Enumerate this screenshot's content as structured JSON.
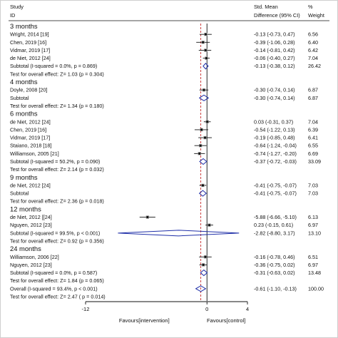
{
  "header": {
    "study": "Study",
    "id": "ID",
    "smd_line1": "Std. Mean",
    "smd_line2": "Difference (95% CI)",
    "pct": "%",
    "weight": "Weight"
  },
  "chart_data": {
    "type": "forest",
    "xlim": [
      -12,
      4
    ],
    "xticks": [
      -12,
      0,
      4
    ],
    "xlabel_left": "Favours[intervention]",
    "xlabel_right": "Favours[control]",
    "overall_line": -0.61,
    "rows": [
      {
        "kind": "group",
        "label": "3 months"
      },
      {
        "kind": "study",
        "label": "Wright, 2014 [19]",
        "est": -0.13,
        "lo": -0.73,
        "hi": 0.47,
        "ci": "-0.13 (-0.73, 0.47)",
        "w": "6.56"
      },
      {
        "kind": "study",
        "label": "Chen, 2019 [16]",
        "est": -0.39,
        "lo": -1.06,
        "hi": 0.28,
        "ci": "-0.39 (-1.06, 0.28)",
        "w": "6.40"
      },
      {
        "kind": "study",
        "label": "Vidmar, 2019 [17]",
        "est": -0.14,
        "lo": -0.81,
        "hi": 0.42,
        "ci": "-0.14 (-0.81, 0.42)",
        "w": "6.42"
      },
      {
        "kind": "study",
        "label": "de Niet, 2012 [24]",
        "est": -0.06,
        "lo": -0.4,
        "hi": 0.27,
        "ci": "-0.06 (-0.40, 0.27)",
        "w": "7.04"
      },
      {
        "kind": "subtotal",
        "label": "Subtotal  (I-squared = 0.0%, p = 0.869)",
        "est": -0.13,
        "lo": -0.38,
        "hi": 0.12,
        "ci": "-0.13 (-0.38, 0.12)",
        "w": "26.42"
      },
      {
        "kind": "test",
        "label": "Test for overall effect: Z= 1.03 (p = 0.304)"
      },
      {
        "kind": "group",
        "label": "4 months"
      },
      {
        "kind": "study",
        "label": "Doyle, 2008 [20]",
        "est": -0.3,
        "lo": -0.74,
        "hi": 0.14,
        "ci": "-0.30 (-0.74, 0.14)",
        "w": "6.87"
      },
      {
        "kind": "subtotal",
        "label": "Subtotal",
        "est": -0.3,
        "lo": -0.74,
        "hi": 0.14,
        "ci": "-0.30 (-0.74, 0.14)",
        "w": "6.87"
      },
      {
        "kind": "test",
        "label": "Test for overall effect: Z= 1.34 (p = 0.180)"
      },
      {
        "kind": "group",
        "label": "6 months"
      },
      {
        "kind": "study",
        "label": "de Niet, 2012 [24]",
        "est": 0.03,
        "lo": -0.31,
        "hi": 0.37,
        "ci": "0.03 (-0.31, 0.37)",
        "w": "7.04"
      },
      {
        "kind": "study",
        "label": "Chen, 2019 [16]",
        "est": -0.54,
        "lo": -1.22,
        "hi": 0.13,
        "ci": "-0.54 (-1.22, 0.13)",
        "w": "6.39"
      },
      {
        "kind": "study",
        "label": "Vidmar, 2019 [17]",
        "est": -0.19,
        "lo": -0.85,
        "hi": 0.48,
        "ci": "-0.19 (-0.85, 0.48)",
        "w": "6.41"
      },
      {
        "kind": "study",
        "label": "Staiano, 2018 [18]",
        "est": -0.64,
        "lo": -1.24,
        "hi": -0.04,
        "ci": "-0.64 (-1.24, -0.04)",
        "w": "6.55"
      },
      {
        "kind": "study",
        "label": "Williamson, 2005 [21]",
        "est": -0.74,
        "lo": -1.27,
        "hi": -0.2,
        "ci": "-0.74 (-1.27, -0.20)",
        "w": "6.69"
      },
      {
        "kind": "subtotal",
        "label": "Subtotal  (I-squared = 50.2%, p = 0.090)",
        "est": -0.37,
        "lo": -0.72,
        "hi": -0.03,
        "ci": "-0.37 (-0.72, -0.03)",
        "w": "33.09"
      },
      {
        "kind": "test",
        "label": "Test for overall effect: Z= 2.14 (p = 0.032)"
      },
      {
        "kind": "group",
        "label": "9 months"
      },
      {
        "kind": "study",
        "label": "de Niet, 2012 [24]",
        "est": -0.41,
        "lo": -0.75,
        "hi": -0.07,
        "ci": "-0.41 (-0.75, -0.07)",
        "w": "7.03"
      },
      {
        "kind": "subtotal",
        "label": "Subtotal",
        "est": -0.41,
        "lo": -0.75,
        "hi": -0.07,
        "ci": "-0.41 (-0.75, -0.07)",
        "w": "7.03"
      },
      {
        "kind": "test",
        "label": "Test for overall effect: Z= 2.36 (p = 0.018)"
      },
      {
        "kind": "group",
        "label": "12 months"
      },
      {
        "kind": "study",
        "label": "de Niet, 2012 [[24]",
        "est": -5.88,
        "lo": -6.66,
        "hi": -5.1,
        "ci": "-5.88 (-6.66, -5.10)",
        "w": "6.13"
      },
      {
        "kind": "study",
        "label": "Nguyen, 2012 [23]",
        "est": 0.23,
        "lo": -0.15,
        "hi": 0.61,
        "ci": "0.23 (-0.15, 0.61)",
        "w": "6.97"
      },
      {
        "kind": "subtotal",
        "label": "Subtotal  (I-squared = 99.5%, p < 0.001)",
        "est": -2.82,
        "lo": -8.8,
        "hi": 3.17,
        "ci": "-2.82 (-8.80, 3.17)",
        "w": "13.10"
      },
      {
        "kind": "test",
        "label": "Test for overall effect: Z= 0.92 (p = 0.356)"
      },
      {
        "kind": "group",
        "label": "24 months"
      },
      {
        "kind": "study",
        "label": "Williamson, 2006 [22]",
        "est": -0.16,
        "lo": -0.78,
        "hi": 0.46,
        "ci": "-0.16 (-0.78, 0.46)",
        "w": "6.51"
      },
      {
        "kind": "study",
        "label": "Nguyen, 2012 [23]",
        "est": -0.36,
        "lo": -0.75,
        "hi": 0.02,
        "ci": "-0.36 (-0.75, 0.02)",
        "w": "6.97"
      },
      {
        "kind": "subtotal",
        "label": "Subtotal  (I-squared = 0.0%, p = 0.587)",
        "est": -0.31,
        "lo": -0.63,
        "hi": 0.02,
        "ci": "-0.31 (-0.63, 0.02)",
        "w": "13.48"
      },
      {
        "kind": "test",
        "label": "Test for overall effect: Z= 1.84 (p = 0.065)"
      },
      {
        "kind": "overall",
        "label": "Overall  (I-squared = 93.4%, p < 0.001)",
        "est": -0.61,
        "lo": -1.1,
        "hi": -0.13,
        "ci": "-0.61 (-1.10, -0.13)",
        "w": "100.00"
      },
      {
        "kind": "test",
        "label": "Test for overall effect: Z= 2.47 ( p = 0.014)"
      }
    ]
  },
  "colors": {
    "diamond": "#1f2fa8",
    "overall_line": "#c62828",
    "ink": "#111111"
  }
}
